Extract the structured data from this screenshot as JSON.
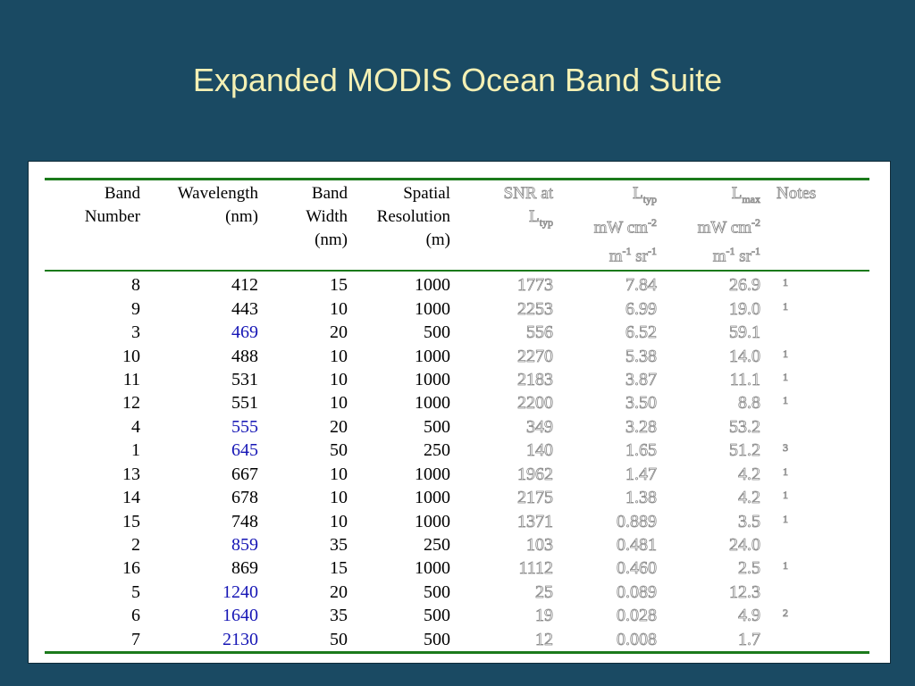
{
  "title": "Expanded MODIS Ocean Band Suite",
  "headers": {
    "band_number": [
      "Band",
      "Number"
    ],
    "wavelength": [
      "Wavelength",
      "(nm)"
    ],
    "band_width": [
      "Band",
      "Width",
      "(nm)"
    ],
    "spatial_resolution": [
      "Spatial",
      "Resolution",
      "(m)"
    ],
    "snr": {
      "line1": "SNR at",
      "line2_base": "L",
      "line2_sub": "typ"
    },
    "ltyp": {
      "base": "L",
      "sub": "typ",
      "unit1_base": "mW cm",
      "unit1_sup": "-2",
      "unit2_m": "m",
      "unit2_m_sup": "-1",
      "unit2_sr": " sr",
      "unit2_sr_sup": "-1"
    },
    "lmax": {
      "base": "L",
      "sub": "max",
      "unit1_base": "mW cm",
      "unit1_sup": "-2",
      "unit2_m": "m",
      "unit2_m_sup": "-1",
      "unit2_sr": " sr",
      "unit2_sr_sup": "-1"
    },
    "notes": "Notes"
  },
  "rows": [
    {
      "band": "8",
      "wavelength": "412",
      "width": "15",
      "resolution": "1000",
      "snr": "1773",
      "ltyp": "7.84",
      "lmax": "26.9",
      "note": "1",
      "highlight": false
    },
    {
      "band": "9",
      "wavelength": "443",
      "width": "10",
      "resolution": "1000",
      "snr": "2253",
      "ltyp": "6.99",
      "lmax": "19.0",
      "note": "1",
      "highlight": false
    },
    {
      "band": "3",
      "wavelength": "469",
      "width": "20",
      "resolution": "500",
      "snr": "556",
      "ltyp": "6.52",
      "lmax": "59.1",
      "note": "",
      "highlight": true
    },
    {
      "band": "10",
      "wavelength": "488",
      "width": "10",
      "resolution": "1000",
      "snr": "2270",
      "ltyp": "5.38",
      "lmax": "14.0",
      "note": "1",
      "highlight": false
    },
    {
      "band": "11",
      "wavelength": "531",
      "width": "10",
      "resolution": "1000",
      "snr": "2183",
      "ltyp": "3.87",
      "lmax": "11.1",
      "note": "1",
      "highlight": false
    },
    {
      "band": "12",
      "wavelength": "551",
      "width": "10",
      "resolution": "1000",
      "snr": "2200",
      "ltyp": "3.50",
      "lmax": "8.8",
      "note": "1",
      "highlight": false
    },
    {
      "band": "4",
      "wavelength": "555",
      "width": "20",
      "resolution": "500",
      "snr": "349",
      "ltyp": "3.28",
      "lmax": "53.2",
      "note": "",
      "highlight": true
    },
    {
      "band": "1",
      "wavelength": "645",
      "width": "50",
      "resolution": "250",
      "snr": "140",
      "ltyp": "1.65",
      "lmax": "51.2",
      "note": "3",
      "highlight": true
    },
    {
      "band": "13",
      "wavelength": "667",
      "width": "10",
      "resolution": "1000",
      "snr": "1962",
      "ltyp": "1.47",
      "lmax": "4.2",
      "note": "1",
      "highlight": false
    },
    {
      "band": "14",
      "wavelength": "678",
      "width": "10",
      "resolution": "1000",
      "snr": "2175",
      "ltyp": "1.38",
      "lmax": "4.2",
      "note": "1",
      "highlight": false
    },
    {
      "band": "15",
      "wavelength": "748",
      "width": "10",
      "resolution": "1000",
      "snr": "1371",
      "ltyp": "0.889",
      "lmax": "3.5",
      "note": "1",
      "highlight": false
    },
    {
      "band": "2",
      "wavelength": "859",
      "width": "35",
      "resolution": "250",
      "snr": "103",
      "ltyp": "0.481",
      "lmax": "24.0",
      "note": "",
      "highlight": true
    },
    {
      "band": "16",
      "wavelength": "869",
      "width": "15",
      "resolution": "1000",
      "snr": "1112",
      "ltyp": "0.460",
      "lmax": "2.5",
      "note": "1",
      "highlight": false
    },
    {
      "band": "5",
      "wavelength": "1240",
      "width": "20",
      "resolution": "500",
      "snr": "25",
      "ltyp": "0.089",
      "lmax": "12.3",
      "note": "",
      "highlight": true
    },
    {
      "band": "6",
      "wavelength": "1640",
      "width": "35",
      "resolution": "500",
      "snr": "19",
      "ltyp": "0.028",
      "lmax": "4.9",
      "note": "2",
      "highlight": true
    },
    {
      "band": "7",
      "wavelength": "2130",
      "width": "50",
      "resolution": "500",
      "snr": "12",
      "ltyp": "0.008",
      "lmax": "1.7",
      "note": "",
      "highlight": true
    }
  ],
  "colors": {
    "background": "#1a4a63",
    "title": "#f4f0b4",
    "rule": "#1b7a1b",
    "highlight_wavelength": "#1515b5"
  }
}
